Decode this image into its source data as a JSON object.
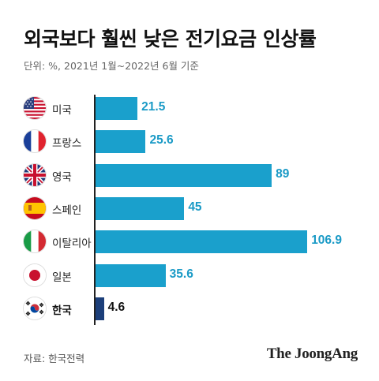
{
  "chart_data": {
    "type": "bar",
    "orientation": "horizontal",
    "title": "외국보다 훨씬 낮은 전기요금 인상률",
    "subtitle": "단위: %, 2021년 1월~2022년 6월 기준",
    "categories": [
      "미국",
      "프랑스",
      "영국",
      "스페인",
      "이탈리아",
      "일본",
      "한국"
    ],
    "values": [
      21.5,
      25.6,
      89,
      45,
      106.9,
      35.6,
      4.6
    ],
    "value_labels": [
      "21.5",
      "25.6",
      "89",
      "45",
      "106.9",
      "35.6",
      "4.6"
    ],
    "flags": [
      "us-flag-icon",
      "france-flag-icon",
      "uk-flag-icon",
      "spain-flag-icon",
      "italy-flag-icon",
      "japan-flag-icon",
      "korea-flag-icon"
    ],
    "highlight_index": 6,
    "xlim": [
      0,
      110
    ],
    "colors": {
      "bar": "#1aa0cc",
      "highlight_bar": "#1c3f7a",
      "value_label": "#1a9ac6",
      "highlight_label": "#111111"
    },
    "grid": false,
    "legend": "none"
  },
  "source": "자료: 한국전력",
  "brand": "The JoongAng"
}
